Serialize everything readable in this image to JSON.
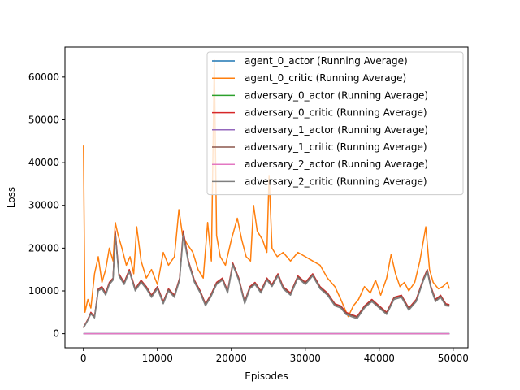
{
  "chart_data": {
    "type": "line",
    "xlabel": "Episodes",
    "ylabel": "Loss",
    "xlim": [
      -2500,
      52000
    ],
    "ylim": [
      -3300,
      67000
    ],
    "xticks": [
      0,
      10000,
      20000,
      30000,
      40000,
      50000
    ],
    "xtick_labels": [
      "0",
      "10000",
      "20000",
      "30000",
      "40000",
      "50000"
    ],
    "yticks": [
      0,
      10000,
      20000,
      30000,
      40000,
      50000,
      60000
    ],
    "ytick_labels": [
      "0",
      "10000",
      "20000",
      "30000",
      "40000",
      "50000",
      "60000"
    ],
    "grid": false,
    "legend_position": "top-right",
    "series": [
      {
        "name": "agent_0_actor (Running Average)",
        "color": "#1f77b4",
        "x": [
          0,
          49500
        ],
        "y": [
          0,
          0
        ]
      },
      {
        "name": "agent_0_critic (Running Average)",
        "color": "#ff7f0e",
        "x": [
          0,
          200,
          600,
          1000,
          1500,
          2000,
          2500,
          3000,
          3500,
          4000,
          4300,
          4700,
          5200,
          5800,
          6300,
          6800,
          7200,
          7800,
          8500,
          9200,
          10000,
          10800,
          11500,
          12300,
          12900,
          13400,
          14000,
          14800,
          15500,
          16200,
          16800,
          17300,
          17700,
          18000,
          18500,
          19200,
          20000,
          20800,
          21400,
          22000,
          22600,
          23000,
          23500,
          24200,
          24800,
          25100,
          25500,
          26200,
          27000,
          28000,
          29000,
          30000,
          31000,
          32000,
          33000,
          34000,
          34800,
          35300,
          35800,
          36500,
          37200,
          38000,
          38800,
          39500,
          40200,
          41000,
          41600,
          42200,
          42800,
          43400,
          44000,
          44800,
          45500,
          46000,
          46300,
          46800,
          47300,
          48000,
          48600,
          49200,
          49500
        ],
        "y": [
          44000,
          5000,
          8000,
          6000,
          14000,
          18000,
          12000,
          15000,
          20000,
          17000,
          26000,
          23000,
          20000,
          16000,
          18000,
          14000,
          25000,
          17000,
          13000,
          15000,
          11500,
          19000,
          16000,
          18000,
          29000,
          23000,
          21000,
          19000,
          15000,
          13000,
          26000,
          17000,
          64000,
          23000,
          18000,
          16000,
          22000,
          27000,
          22000,
          18000,
          17000,
          30000,
          24000,
          22000,
          19000,
          37000,
          20000,
          18000,
          19000,
          17000,
          19000,
          18000,
          17000,
          16000,
          13000,
          11000,
          8000,
          6000,
          4000,
          6500,
          8000,
          11000,
          9500,
          12500,
          9000,
          13000,
          18500,
          14000,
          11000,
          12000,
          10000,
          12000,
          17000,
          22000,
          25000,
          15000,
          12000,
          10500,
          11000,
          12000,
          10500
        ]
      },
      {
        "name": "adversary_0_actor (Running Average)",
        "color": "#2ca02c",
        "x": [
          0,
          49500
        ],
        "y": [
          0,
          0
        ]
      },
      {
        "name": "adversary_0_critic (Running Average)",
        "color": "#d62728",
        "x": [
          0,
          500,
          1000,
          1500,
          2000,
          2500,
          3000,
          3500,
          4000,
          4300,
          4800,
          5500,
          6200,
          7000,
          7800,
          8500,
          9200,
          10000,
          10800,
          11500,
          12300,
          13000,
          13500,
          14200,
          15000,
          15800,
          16500,
          17200,
          18000,
          18800,
          19500,
          20200,
          21000,
          21800,
          22500,
          23200,
          24000,
          24800,
          25500,
          26300,
          27000,
          28000,
          29000,
          30000,
          31000,
          32000,
          33000,
          34000,
          34800,
          35500,
          36200,
          37000,
          38000,
          39000,
          40000,
          41000,
          42000,
          43000,
          44000,
          45000,
          46000,
          46500,
          47000,
          47600,
          48300,
          49000,
          49500
        ],
        "y": [
          1500,
          3000,
          5000,
          4000,
          10500,
          11000,
          9500,
          12000,
          13000,
          24000,
          14000,
          12000,
          15000,
          10500,
          12500,
          11000,
          9000,
          11000,
          7500,
          10500,
          9000,
          13000,
          24000,
          17000,
          12500,
          10000,
          7000,
          9000,
          12000,
          13000,
          10000,
          16500,
          13000,
          7500,
          11000,
          12000,
          10000,
          13000,
          11500,
          14000,
          11000,
          9500,
          13500,
          12000,
          14000,
          11000,
          9500,
          7000,
          6500,
          5000,
          4500,
          4000,
          6500,
          8000,
          6500,
          5000,
          8500,
          9000,
          6000,
          8000,
          13000,
          15000,
          11000,
          8000,
          9000,
          7000,
          6800
        ]
      },
      {
        "name": "adversary_1_actor (Running Average)",
        "color": "#9467bd",
        "x": [
          0,
          49500
        ],
        "y": [
          0,
          0
        ]
      },
      {
        "name": "adversary_1_critic (Running Average)",
        "color": "#8c564b",
        "x": [
          0,
          500,
          1000,
          1500,
          2000,
          2500,
          3000,
          3500,
          4000,
          4300,
          4800,
          5500,
          6200,
          7000,
          7800,
          8500,
          9200,
          10000,
          10800,
          11500,
          12300,
          13000,
          13500,
          14200,
          15000,
          15800,
          16500,
          17200,
          18000,
          18800,
          19500,
          20200,
          21000,
          21800,
          22500,
          23200,
          24000,
          24800,
          25500,
          26300,
          27000,
          28000,
          29000,
          30000,
          31000,
          32000,
          33000,
          34000,
          34800,
          35500,
          36200,
          37000,
          38000,
          39000,
          40000,
          41000,
          42000,
          43000,
          44000,
          45000,
          46000,
          46500,
          47000,
          47600,
          48300,
          49000,
          49500
        ],
        "y": [
          1400,
          2900,
          4800,
          3900,
          10300,
          10800,
          9300,
          11800,
          12800,
          23500,
          13800,
          11800,
          14700,
          10300,
          12300,
          10800,
          8800,
          10800,
          7300,
          10300,
          8800,
          12800,
          23500,
          16800,
          12300,
          9800,
          6800,
          8800,
          11800,
          12800,
          9800,
          16300,
          12800,
          7300,
          10800,
          11800,
          9800,
          12800,
          11300,
          13800,
          10800,
          9300,
          13300,
          11800,
          13800,
          10800,
          9300,
          6800,
          6300,
          4800,
          4300,
          3800,
          6300,
          7800,
          6300,
          4800,
          8300,
          8800,
          5800,
          7800,
          12800,
          14800,
          10800,
          7800,
          8800,
          6800,
          6600
        ]
      },
      {
        "name": "adversary_2_actor (Running Average)",
        "color": "#e377c2",
        "x": [
          0,
          49500
        ],
        "y": [
          0,
          0
        ]
      },
      {
        "name": "adversary_2_critic (Running Average)",
        "color": "#7f7f7f",
        "x": [
          0,
          500,
          1000,
          1500,
          2000,
          2500,
          3000,
          3500,
          4000,
          4300,
          4800,
          5500,
          6200,
          7000,
          7800,
          8500,
          9200,
          10000,
          10800,
          11500,
          12300,
          13000,
          13500,
          14200,
          15000,
          15800,
          16500,
          17200,
          18000,
          18800,
          19500,
          20200,
          21000,
          21800,
          22500,
          23200,
          24000,
          24800,
          25500,
          26300,
          27000,
          28000,
          29000,
          30000,
          31000,
          32000,
          33000,
          34000,
          34800,
          35500,
          36200,
          37000,
          38000,
          39000,
          40000,
          41000,
          42000,
          43000,
          44000,
          45000,
          46000,
          46500,
          47000,
          47600,
          48300,
          49000,
          49500
        ],
        "y": [
          1300,
          2800,
          4600,
          3700,
          10000,
          10500,
          9000,
          11500,
          12500,
          23000,
          13500,
          11500,
          14500,
          10000,
          12000,
          10500,
          8500,
          10500,
          7000,
          10000,
          8500,
          12500,
          23000,
          16500,
          12000,
          9500,
          6500,
          8500,
          11500,
          12500,
          9500,
          16000,
          12500,
          7000,
          10500,
          11500,
          9500,
          12500,
          11000,
          13500,
          10500,
          9000,
          13000,
          11500,
          13500,
          10500,
          9000,
          6500,
          6000,
          4500,
          4000,
          3500,
          6000,
          7500,
          6000,
          4500,
          8000,
          8500,
          5500,
          7500,
          12500,
          14500,
          10500,
          7500,
          8500,
          6500,
          6400
        ]
      }
    ]
  }
}
